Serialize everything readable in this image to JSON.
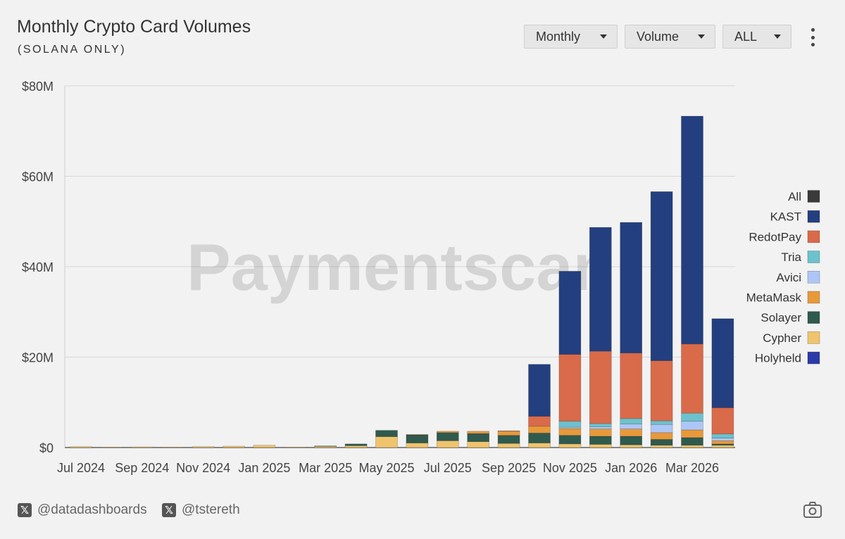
{
  "header": {
    "title": "Monthly Crypto Card Volumes",
    "subtitle": "(SOLANA ONLY)"
  },
  "controls": {
    "period": "Monthly",
    "metric": "Volume",
    "filter": "ALL"
  },
  "footer": {
    "handle1": "@datadashboards",
    "handle2": "@tstereth",
    "icon": "camera-icon"
  },
  "watermark": "Paymentscan",
  "chart_data": {
    "type": "bar",
    "stacked": true,
    "title": "Monthly Crypto Card Volumes",
    "subtitle": "(SOLANA ONLY)",
    "ylim": [
      0,
      80000000
    ],
    "y_ticks": [
      0,
      20000000,
      40000000,
      60000000,
      80000000
    ],
    "y_tick_labels": [
      "$0",
      "$20M",
      "$40M",
      "$60M",
      "$80M"
    ],
    "x_tick_labels": [
      "Jul 2024",
      "Sep 2024",
      "Nov 2024",
      "Jan 2025",
      "Mar 2025",
      "May 2025",
      "Jul 2025",
      "Sep 2025",
      "Nov 2025",
      "Jan 2026",
      "Mar 2026"
    ],
    "categories": [
      "Jul 2024",
      "Aug 2024",
      "Sep 2024",
      "Oct 2024",
      "Nov 2024",
      "Dec 2024",
      "Jan 2025",
      "Feb 2025",
      "Mar 2025",
      "Apr 2025",
      "May 2025",
      "Jun 2025",
      "Jul 2025",
      "Aug 2025",
      "Sep 2025",
      "Oct 2025",
      "Nov 2025",
      "Dec 2025",
      "Jan 2026",
      "Feb 2026",
      "Mar 2026",
      "Apr 2026"
    ],
    "legend_position": "right",
    "grid": true,
    "series": [
      {
        "name": "All",
        "color": "#3a3a3a",
        "values": [
          0,
          0,
          0,
          0,
          0,
          0,
          0,
          0,
          0,
          0,
          0,
          0,
          0,
          0,
          0,
          0,
          0,
          0,
          0,
          0,
          0,
          0
        ]
      },
      {
        "name": "Holyheld",
        "color": "#2b3aa8",
        "values": [
          0,
          0,
          0,
          0,
          0,
          0,
          0,
          0,
          0,
          0,
          0,
          0,
          0,
          0,
          0,
          0,
          0,
          0,
          0,
          0,
          0,
          0
        ]
      },
      {
        "name": "Cypher",
        "color": "#f0c46c",
        "values": [
          0.2,
          0.1,
          0.15,
          0.1,
          0.2,
          0.3,
          0.5,
          0.1,
          0.3,
          0.4,
          2.4,
          1.0,
          1.5,
          1.3,
          0.9,
          1.0,
          0.8,
          0.7,
          0.6,
          0.5,
          0.5,
          0.5
        ]
      },
      {
        "name": "Solayer",
        "color": "#2f5a4e",
        "values": [
          0,
          0,
          0,
          0,
          0,
          0,
          0,
          0,
          0.05,
          0.4,
          1.4,
          1.8,
          1.8,
          1.8,
          1.8,
          2.2,
          1.9,
          1.8,
          1.9,
          1.3,
          1.7,
          0.3
        ]
      },
      {
        "name": "MetaMask",
        "color": "#e8993a",
        "values": [
          0,
          0,
          0,
          0,
          0,
          0,
          0,
          0,
          0,
          0,
          0,
          0.1,
          0.3,
          0.5,
          0.9,
          1.5,
          1.5,
          1.6,
          1.6,
          1.5,
          1.7,
          0.7
        ]
      },
      {
        "name": "Avici",
        "color": "#aec6f7",
        "values": [
          0,
          0,
          0,
          0,
          0,
          0,
          0,
          0,
          0,
          0,
          0,
          0,
          0,
          0,
          0,
          0,
          0.3,
          0.5,
          1.1,
          1.8,
          1.9,
          0.6
        ]
      },
      {
        "name": "Tria",
        "color": "#6cc2cc",
        "values": [
          0,
          0,
          0,
          0,
          0,
          0,
          0,
          0,
          0,
          0,
          0,
          0,
          0,
          0,
          0,
          0,
          1.3,
          0.7,
          1.2,
          0.8,
          1.8,
          0.9
        ]
      },
      {
        "name": "RedotPay",
        "color": "#d96a4a",
        "values": [
          0,
          0,
          0,
          0,
          0,
          0,
          0,
          0,
          0,
          0,
          0,
          0,
          0,
          0,
          0.1,
          2.2,
          14.8,
          16.0,
          14.5,
          13.3,
          15.3,
          5.8
        ]
      },
      {
        "name": "KAST",
        "color": "#233f7f",
        "values": [
          0,
          0,
          0,
          0,
          0,
          0,
          0,
          0,
          0,
          0,
          0,
          0,
          0,
          0,
          0,
          11.5,
          18.4,
          27.4,
          28.9,
          37.4,
          50.4,
          19.7
        ]
      }
    ],
    "value_units": "USD millions",
    "legend_order": [
      "All",
      "KAST",
      "RedotPay",
      "Tria",
      "Avici",
      "MetaMask",
      "Solayer",
      "Cypher",
      "Holyheld"
    ]
  }
}
